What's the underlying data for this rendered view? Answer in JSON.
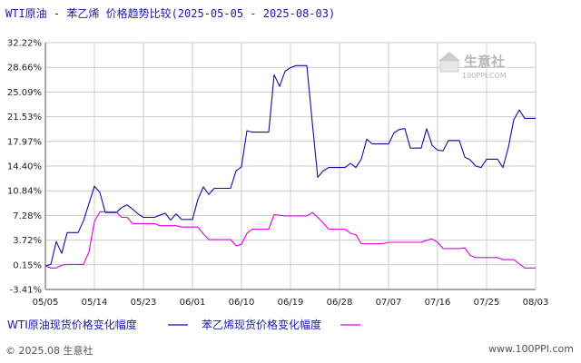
{
  "title": "WTI原油 - 苯乙烯 价格趋势比较(2025-05-05 - 2025-08-03)",
  "watermark": {
    "cn": "生意社",
    "en": "100PPI.COM",
    "colors": {
      "mark": "#c9cfc9",
      "text": "#b5b8b5"
    }
  },
  "footer": {
    "left": "© 2025.08 生意社",
    "right": "www.100PPI.com"
  },
  "colors": {
    "wti": "#1010a0",
    "styrene": "#e000e0",
    "grid": "#cccccc",
    "axis": "#555555",
    "text": "#1a1aa8"
  },
  "chart_data": {
    "type": "line",
    "title": "WTI原油 - 苯乙烯 价格趋势比较(2025-05-05 - 2025-08-03)",
    "x_start": "2025-05-05",
    "x_end": "2025-08-03",
    "x_ticks": [
      "05/05",
      "05/14",
      "05/23",
      "06/01",
      "06/10",
      "06/19",
      "06/28",
      "07/07",
      "07/16",
      "07/25",
      "08/03"
    ],
    "y_ticks": [
      "32.22%",
      "28.66%",
      "25.09%",
      "21.53%",
      "17.97%",
      "14.40%",
      "10.84%",
      "7.28%",
      "3.72%",
      "0.15%",
      "-3.41%"
    ],
    "ylim": [
      -3.41,
      32.22
    ],
    "grid": true,
    "legend_position": "bottom",
    "series": [
      {
        "name": "WTI原油现货价格变化幅度",
        "points": [
          [
            "2025-05-05",
            0.0
          ],
          [
            "2025-05-06",
            0.2
          ],
          [
            "2025-05-07",
            3.5
          ],
          [
            "2025-05-08",
            1.8
          ],
          [
            "2025-05-09",
            4.8
          ],
          [
            "2025-05-10",
            4.8
          ],
          [
            "2025-05-11",
            4.8
          ],
          [
            "2025-05-12",
            6.5
          ],
          [
            "2025-05-13",
            9.0
          ],
          [
            "2025-05-14",
            11.5
          ],
          [
            "2025-05-15",
            10.6
          ],
          [
            "2025-05-16",
            7.7
          ],
          [
            "2025-05-17",
            7.7
          ],
          [
            "2025-05-18",
            7.7
          ],
          [
            "2025-05-19",
            8.4
          ],
          [
            "2025-05-20",
            8.8
          ],
          [
            "2025-05-21",
            8.2
          ],
          [
            "2025-05-22",
            7.5
          ],
          [
            "2025-05-23",
            7.0
          ],
          [
            "2025-05-24",
            7.0
          ],
          [
            "2025-05-25",
            7.0
          ],
          [
            "2025-05-26",
            7.3
          ],
          [
            "2025-05-27",
            7.6
          ],
          [
            "2025-05-28",
            6.6
          ],
          [
            "2025-05-29",
            7.5
          ],
          [
            "2025-05-30",
            6.7
          ],
          [
            "2025-05-31",
            6.7
          ],
          [
            "2025-06-01",
            6.7
          ],
          [
            "2025-06-02",
            9.6
          ],
          [
            "2025-06-03",
            11.4
          ],
          [
            "2025-06-04",
            10.3
          ],
          [
            "2025-06-05",
            11.2
          ],
          [
            "2025-06-06",
            11.2
          ],
          [
            "2025-06-07",
            11.2
          ],
          [
            "2025-06-08",
            11.2
          ],
          [
            "2025-06-09",
            13.7
          ],
          [
            "2025-06-10",
            14.3
          ],
          [
            "2025-06-11",
            19.5
          ],
          [
            "2025-06-12",
            19.3
          ],
          [
            "2025-06-13",
            19.3
          ],
          [
            "2025-06-14",
            19.3
          ],
          [
            "2025-06-15",
            19.3
          ],
          [
            "2025-06-16",
            27.6
          ],
          [
            "2025-06-17",
            25.9
          ],
          [
            "2025-06-18",
            28.1
          ],
          [
            "2025-06-19",
            28.6
          ],
          [
            "2025-06-20",
            28.9
          ],
          [
            "2025-06-21",
            28.9
          ],
          [
            "2025-06-22",
            28.9
          ],
          [
            "2025-06-23",
            20.7
          ],
          [
            "2025-06-24",
            12.8
          ],
          [
            "2025-06-25",
            13.7
          ],
          [
            "2025-06-26",
            14.2
          ],
          [
            "2025-06-27",
            14.2
          ],
          [
            "2025-06-28",
            14.2
          ],
          [
            "2025-06-29",
            14.2
          ],
          [
            "2025-06-30",
            14.8
          ],
          [
            "2025-07-01",
            14.2
          ],
          [
            "2025-07-02",
            15.4
          ],
          [
            "2025-07-03",
            18.3
          ],
          [
            "2025-07-04",
            17.6
          ],
          [
            "2025-07-05",
            17.6
          ],
          [
            "2025-07-06",
            17.6
          ],
          [
            "2025-07-07",
            17.6
          ],
          [
            "2025-07-08",
            19.2
          ],
          [
            "2025-07-09",
            19.7
          ],
          [
            "2025-07-10",
            19.8
          ],
          [
            "2025-07-11",
            17.0
          ],
          [
            "2025-07-12",
            17.0
          ],
          [
            "2025-07-13",
            17.0
          ],
          [
            "2025-07-14",
            19.8
          ],
          [
            "2025-07-15",
            17.4
          ],
          [
            "2025-07-16",
            16.7
          ],
          [
            "2025-07-17",
            16.6
          ],
          [
            "2025-07-18",
            18.1
          ],
          [
            "2025-07-19",
            18.1
          ],
          [
            "2025-07-20",
            18.1
          ],
          [
            "2025-07-21",
            15.7
          ],
          [
            "2025-07-22",
            15.3
          ],
          [
            "2025-07-23",
            14.4
          ],
          [
            "2025-07-24",
            14.2
          ],
          [
            "2025-07-25",
            15.4
          ],
          [
            "2025-07-26",
            15.4
          ],
          [
            "2025-07-27",
            15.4
          ],
          [
            "2025-07-28",
            14.2
          ],
          [
            "2025-07-29",
            17.1
          ],
          [
            "2025-07-30",
            21.1
          ],
          [
            "2025-07-31",
            22.5
          ],
          [
            "2025-08-01",
            21.3
          ],
          [
            "2025-08-02",
            21.3
          ],
          [
            "2025-08-03",
            21.3
          ]
        ]
      },
      {
        "name": "苯乙烯现货价格变化幅度",
        "points": [
          [
            "2025-05-05",
            0.0
          ],
          [
            "2025-05-06",
            -0.3
          ],
          [
            "2025-05-07",
            -0.3
          ],
          [
            "2025-05-08",
            0.1
          ],
          [
            "2025-05-09",
            0.2
          ],
          [
            "2025-05-10",
            0.2
          ],
          [
            "2025-05-11",
            0.2
          ],
          [
            "2025-05-12",
            0.2
          ],
          [
            "2025-05-13",
            2.0
          ],
          [
            "2025-05-14",
            6.4
          ],
          [
            "2025-05-15",
            7.8
          ],
          [
            "2025-05-16",
            7.8
          ],
          [
            "2025-05-17",
            7.8
          ],
          [
            "2025-05-18",
            7.8
          ],
          [
            "2025-05-19",
            7.0
          ],
          [
            "2025-05-20",
            7.0
          ],
          [
            "2025-05-21",
            6.1
          ],
          [
            "2025-05-22",
            6.1
          ],
          [
            "2025-05-23",
            6.1
          ],
          [
            "2025-05-24",
            6.1
          ],
          [
            "2025-05-25",
            6.1
          ],
          [
            "2025-05-26",
            5.8
          ],
          [
            "2025-05-27",
            5.8
          ],
          [
            "2025-05-28",
            5.8
          ],
          [
            "2025-05-29",
            5.8
          ],
          [
            "2025-05-30",
            5.6
          ],
          [
            "2025-05-31",
            5.6
          ],
          [
            "2025-06-01",
            5.6
          ],
          [
            "2025-06-02",
            5.6
          ],
          [
            "2025-06-03",
            4.6
          ],
          [
            "2025-06-04",
            3.8
          ],
          [
            "2025-06-05",
            3.8
          ],
          [
            "2025-06-06",
            3.8
          ],
          [
            "2025-06-07",
            3.8
          ],
          [
            "2025-06-08",
            3.8
          ],
          [
            "2025-06-09",
            2.9
          ],
          [
            "2025-06-10",
            3.1
          ],
          [
            "2025-06-11",
            4.7
          ],
          [
            "2025-06-12",
            5.3
          ],
          [
            "2025-06-13",
            5.3
          ],
          [
            "2025-06-14",
            5.3
          ],
          [
            "2025-06-15",
            5.3
          ],
          [
            "2025-06-16",
            7.4
          ],
          [
            "2025-06-17",
            7.3
          ],
          [
            "2025-06-18",
            7.2
          ],
          [
            "2025-06-19",
            7.2
          ],
          [
            "2025-06-20",
            7.2
          ],
          [
            "2025-06-21",
            7.2
          ],
          [
            "2025-06-22",
            7.2
          ],
          [
            "2025-06-23",
            7.7
          ],
          [
            "2025-06-24",
            7.0
          ],
          [
            "2025-06-25",
            6.2
          ],
          [
            "2025-06-26",
            5.3
          ],
          [
            "2025-06-27",
            5.3
          ],
          [
            "2025-06-28",
            5.3
          ],
          [
            "2025-06-29",
            5.3
          ],
          [
            "2025-06-30",
            4.7
          ],
          [
            "2025-07-01",
            4.5
          ],
          [
            "2025-07-02",
            3.2
          ],
          [
            "2025-07-03",
            3.2
          ],
          [
            "2025-07-04",
            3.2
          ],
          [
            "2025-07-05",
            3.2
          ],
          [
            "2025-07-06",
            3.2
          ],
          [
            "2025-07-07",
            3.4
          ],
          [
            "2025-07-08",
            3.4
          ],
          [
            "2025-07-09",
            3.4
          ],
          [
            "2025-07-10",
            3.4
          ],
          [
            "2025-07-11",
            3.4
          ],
          [
            "2025-07-12",
            3.4
          ],
          [
            "2025-07-13",
            3.4
          ],
          [
            "2025-07-14",
            3.7
          ],
          [
            "2025-07-15",
            3.9
          ],
          [
            "2025-07-16",
            3.4
          ],
          [
            "2025-07-17",
            2.5
          ],
          [
            "2025-07-18",
            2.5
          ],
          [
            "2025-07-19",
            2.5
          ],
          [
            "2025-07-20",
            2.5
          ],
          [
            "2025-07-21",
            2.6
          ],
          [
            "2025-07-22",
            1.5
          ],
          [
            "2025-07-23",
            1.2
          ],
          [
            "2025-07-24",
            1.2
          ],
          [
            "2025-07-25",
            1.2
          ],
          [
            "2025-07-26",
            1.2
          ],
          [
            "2025-07-27",
            1.2
          ],
          [
            "2025-07-28",
            0.9
          ],
          [
            "2025-07-29",
            0.9
          ],
          [
            "2025-07-30",
            0.9
          ],
          [
            "2025-07-31",
            0.3
          ],
          [
            "2025-08-01",
            -0.3
          ],
          [
            "2025-08-02",
            -0.3
          ],
          [
            "2025-08-03",
            -0.3
          ]
        ]
      }
    ]
  }
}
